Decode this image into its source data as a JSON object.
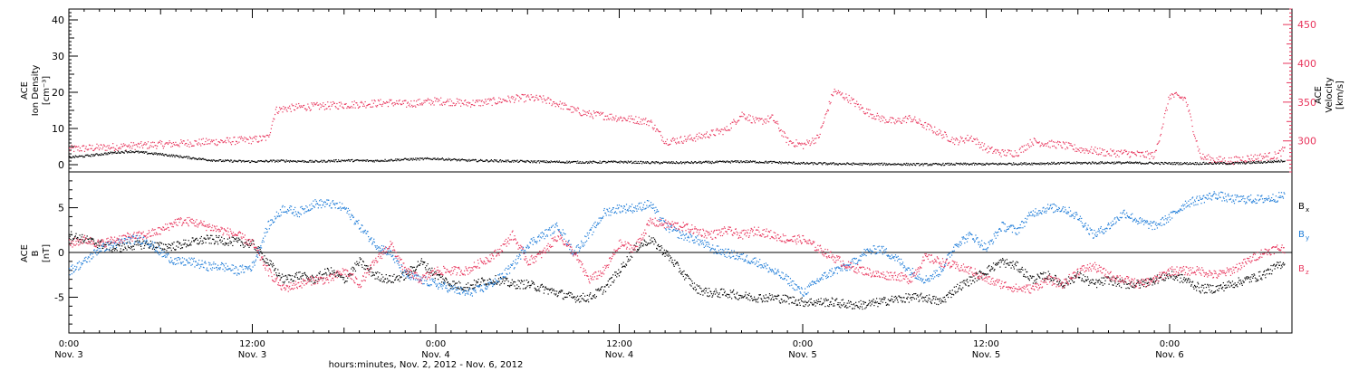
{
  "chart_data": [
    {
      "type": "scatter",
      "panel": "top",
      "ylabel_left": [
        "ACE",
        "Ion Density",
        "[cm⁻³]"
      ],
      "ylabel_right": [
        "ACE",
        "Velocity",
        "[km/s]"
      ],
      "ylim_left": [
        -2,
        43
      ],
      "ylim_right": [
        260,
        470
      ],
      "yticks_left": [
        "0",
        "10",
        "20",
        "30",
        "40"
      ],
      "yticks_right": [
        "300",
        "350",
        "400",
        "450"
      ],
      "x_range_hours": [
        0,
        80
      ],
      "series": [
        {
          "name": "Velocity",
          "axis": "right",
          "color": "#e8355c",
          "x": [
            0,
            1,
            2,
            3,
            4,
            5,
            6,
            7,
            8,
            9,
            10,
            11,
            12,
            12.5,
            13,
            13.5,
            14,
            15,
            16,
            17,
            18,
            19,
            20,
            21,
            22,
            23,
            24,
            25,
            26,
            27,
            28,
            29,
            30,
            31,
            32,
            33,
            34,
            35,
            36,
            37,
            38,
            39,
            40,
            41,
            42,
            43,
            44,
            45,
            46,
            47,
            48,
            49,
            50,
            51,
            52,
            53,
            54,
            55,
            56,
            57,
            58,
            59,
            60,
            61,
            62,
            63,
            64,
            65,
            66,
            67,
            68,
            69,
            70,
            71,
            72,
            73,
            74,
            75,
            76,
            77,
            78,
            79,
            79.5
          ],
          "y": [
            290,
            291,
            292,
            293,
            294,
            295,
            296,
            297,
            298,
            299,
            300,
            301,
            302,
            303,
            305,
            340,
            342,
            344,
            345,
            346,
            347,
            348,
            349,
            350,
            348,
            350,
            352,
            351,
            349,
            350,
            352,
            355,
            356,
            354,
            348,
            340,
            335,
            333,
            330,
            328,
            325,
            300,
            302,
            305,
            310,
            315,
            335,
            325,
            330,
            300,
            295,
            305,
            365,
            355,
            340,
            330,
            325,
            330,
            320,
            310,
            300,
            305,
            290,
            285,
            285,
            300,
            297,
            295,
            290,
            288,
            285,
            285,
            283,
            282,
            360,
            355,
            280,
            276,
            275,
            278,
            280,
            282,
            290
          ]
        },
        {
          "name": "Ion Density",
          "axis": "left",
          "color": "#000000",
          "x": [
            0,
            1,
            2,
            3,
            4,
            5,
            6,
            7,
            8,
            9,
            10,
            12,
            14,
            16,
            18,
            20,
            22,
            24,
            26,
            28,
            30,
            32,
            34,
            36,
            38,
            40,
            42,
            44,
            46,
            48,
            50,
            52,
            54,
            56,
            58,
            60,
            62,
            64,
            66,
            68,
            70,
            72,
            74,
            76,
            78,
            79.5
          ],
          "y": [
            2.2,
            2.5,
            3.0,
            3.5,
            3.8,
            3.4,
            3.0,
            2.5,
            2.0,
            1.5,
            1.2,
            1.0,
            1.2,
            1.0,
            1.3,
            1.2,
            1.6,
            1.8,
            1.3,
            1.2,
            1.0,
            0.9,
            0.8,
            0.9,
            0.7,
            0.7,
            0.8,
            1.0,
            0.8,
            0.5,
            0.4,
            0.3,
            0.3,
            0.2,
            0.3,
            0.3,
            0.4,
            0.5,
            0.6,
            0.7,
            0.6,
            0.5,
            0.5,
            0.5,
            0.8,
            1.2
          ]
        }
      ]
    },
    {
      "type": "scatter",
      "panel": "bottom",
      "ylabel_left": [
        "ACE",
        "B",
        "[nT]"
      ],
      "ylim": [
        -9,
        9
      ],
      "yticks": [
        "-5",
        "0",
        "5"
      ],
      "x_range_hours": [
        0,
        80
      ],
      "legend": [
        "x",
        "y",
        "z"
      ],
      "legend_placement": "right",
      "series": [
        {
          "name": "x",
          "color": "#000000",
          "x": [
            0,
            1,
            2,
            3,
            4,
            5,
            6,
            7,
            8,
            9,
            10,
            11,
            12,
            13,
            14,
            15,
            16,
            17,
            18,
            19,
            20,
            21,
            22,
            23,
            24,
            25,
            26,
            27,
            28,
            29,
            30,
            31,
            32,
            33,
            34,
            35,
            36,
            37,
            38,
            39,
            40,
            41,
            42,
            43,
            44,
            45,
            46,
            47,
            48,
            49,
            50,
            51,
            52,
            53,
            54,
            55,
            56,
            57,
            58,
            59,
            60,
            61,
            62,
            63,
            64,
            65,
            66,
            67,
            68,
            69,
            70,
            71,
            72,
            73,
            74,
            75,
            76,
            77,
            78,
            79,
            79.5
          ],
          "y": [
            2,
            1.5,
            1,
            0.5,
            0.8,
            1.0,
            0.7,
            0.8,
            1.2,
            1.5,
            1.4,
            1.2,
            1.0,
            -1,
            -3,
            -2.5,
            -3,
            -2,
            -3,
            -1,
            -2.5,
            -3,
            -2.5,
            -1,
            -2.5,
            -3.5,
            -3.8,
            -3.2,
            -3,
            -3.5,
            -3.5,
            -4,
            -4.5,
            -5,
            -5,
            -4,
            -2,
            0.5,
            1.5,
            0,
            -2,
            -4,
            -4.5,
            -4.5,
            -4.8,
            -5,
            -5,
            -5.2,
            -5.5,
            -5.5,
            -5.5,
            -5.8,
            -5.8,
            -5.5,
            -5.2,
            -5,
            -5,
            -5.5,
            -4,
            -3,
            -2,
            -1,
            -1.5,
            -3,
            -2.5,
            -3.5,
            -2.5,
            -3.5,
            -3,
            -3.5,
            -3.5,
            -3,
            -2.5,
            -3,
            -4,
            -4,
            -3.5,
            -3,
            -2.5,
            -1.5,
            -1
          ]
        },
        {
          "name": "y",
          "color": "#1c7bd8",
          "x": [
            0,
            1,
            2,
            3,
            4,
            5,
            6,
            7,
            8,
            9,
            10,
            11,
            12,
            13,
            14,
            15,
            16,
            17,
            18,
            19,
            20,
            21,
            22,
            23,
            24,
            25,
            26,
            27,
            28,
            29,
            30,
            31,
            32,
            33,
            34,
            35,
            36,
            37,
            38,
            39,
            40,
            41,
            42,
            43,
            44,
            45,
            46,
            47,
            48,
            49,
            50,
            51,
            52,
            53,
            54,
            55,
            56,
            57,
            58,
            59,
            60,
            61,
            62,
            63,
            64,
            65,
            66,
            67,
            68,
            69,
            70,
            71,
            72,
            73,
            74,
            75,
            76,
            77,
            78,
            79,
            79.5
          ],
          "y": [
            -2,
            -1,
            0.5,
            1,
            1.5,
            1.5,
            0,
            -1,
            -1,
            -1.5,
            -1.5,
            -2,
            -1.5,
            3,
            5,
            4.5,
            5.5,
            5.5,
            5,
            3,
            1,
            0,
            -2.5,
            -3,
            -3.5,
            -4,
            -4.5,
            -4,
            -3,
            -1.5,
            1,
            2,
            3,
            0,
            2,
            4.5,
            5,
            5,
            5.5,
            3,
            2,
            1.5,
            0.5,
            0,
            -0.5,
            -1,
            -2,
            -3,
            -4.5,
            -3,
            -2,
            -1.5,
            0,
            0.5,
            -0.5,
            -2,
            -3,
            -2,
            1,
            2,
            0.5,
            3,
            2.5,
            4.5,
            5,
            5,
            4,
            2,
            3,
            4.5,
            3.5,
            3,
            4,
            5.5,
            6,
            6.5,
            6,
            6,
            6,
            6.2,
            6.5
          ]
        },
        {
          "name": "z",
          "color": "#e8355c",
          "x": [
            0,
            1,
            2,
            3,
            4,
            5,
            6,
            7,
            8,
            9,
            10,
            11,
            12,
            13,
            14,
            15,
            16,
            17,
            18,
            19,
            20,
            21,
            22,
            23,
            24,
            25,
            26,
            27,
            28,
            29,
            30,
            31,
            32,
            33,
            34,
            35,
            36,
            37,
            38,
            39,
            40,
            41,
            42,
            43,
            44,
            45,
            46,
            47,
            48,
            49,
            50,
            51,
            52,
            53,
            54,
            55,
            56,
            57,
            58,
            59,
            60,
            61,
            62,
            63,
            64,
            65,
            66,
            67,
            68,
            69,
            70,
            71,
            72,
            73,
            74,
            75,
            76,
            77,
            78,
            79,
            79.5
          ],
          "y": [
            1,
            1.5,
            1,
            1.5,
            1.8,
            2,
            2.5,
            3.5,
            3.5,
            3,
            2.5,
            2,
            1,
            -2,
            -4,
            -3.5,
            -3,
            -3,
            -2,
            -3.5,
            -1,
            1,
            -2,
            -3,
            -2,
            -2,
            -2,
            -1,
            0,
            2,
            -1,
            0,
            2,
            0,
            -3,
            -2,
            1,
            0.5,
            3.5,
            3.2,
            3,
            2.5,
            2,
            2.5,
            2,
            2.5,
            2,
            1.5,
            1.5,
            0.5,
            -0.5,
            -1.5,
            -2,
            -2.5,
            -2.5,
            -3,
            -0.5,
            -1,
            -1.5,
            -2,
            -3,
            -3.5,
            -4,
            -4,
            -3,
            -3.5,
            -2,
            -1.5,
            -2.5,
            -3,
            -3.5,
            -3,
            -2,
            -2,
            -2,
            -2.5,
            -2,
            -1,
            0,
            0.5,
            0.5
          ]
        }
      ]
    }
  ],
  "x_axis": {
    "ticks": [
      {
        "hour": 0,
        "time": "0:00",
        "day": "Nov. 3"
      },
      {
        "hour": 12,
        "time": "12:00",
        "day": "Nov. 3"
      },
      {
        "hour": 24,
        "time": "0:00",
        "day": "Nov. 4"
      },
      {
        "hour": 36,
        "time": "12:00",
        "day": "Nov. 4"
      },
      {
        "hour": 48,
        "time": "0:00",
        "day": "Nov. 5"
      },
      {
        "hour": 60,
        "time": "12:00",
        "day": "Nov. 5"
      },
      {
        "hour": 72,
        "time": "0:00",
        "day": "Nov. 6"
      }
    ],
    "label": "hours:minutes, Nov.  2, 2012 - Nov.  6, 2012"
  },
  "colors": {
    "axis": "#000000",
    "velocity": "#e8355c",
    "bx": "#000000",
    "by": "#1c7bd8",
    "bz": "#e8355c"
  }
}
